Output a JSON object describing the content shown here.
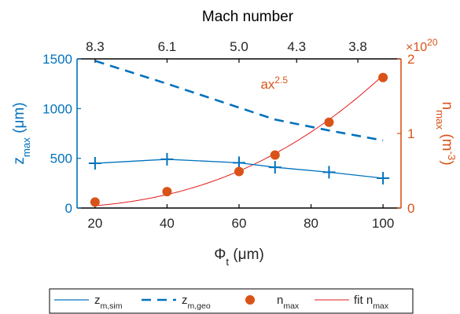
{
  "colors": {
    "left_axis": "#0072bd",
    "right_axis": "#d95319",
    "fit_line": "#e31a1c",
    "frame": "#000000",
    "text": "#262626"
  },
  "chart_data": {
    "type": "line",
    "title": "",
    "xlabel": "Φt (μm)",
    "xlabel_parts": {
      "main": "Φ",
      "sub": "t",
      "rest": " (μm)"
    },
    "xlim": [
      15,
      105
    ],
    "xticks": [
      20,
      40,
      60,
      80,
      100
    ],
    "top_axis": {
      "label": "Mach number",
      "ticks": [
        {
          "x": 20,
          "label": "8.3"
        },
        {
          "x": 40,
          "label": "6.1"
        },
        {
          "x": 60,
          "label": "5.0"
        },
        {
          "x": 76,
          "label": "4.3"
        },
        {
          "x": 93,
          "label": "3.8"
        }
      ]
    },
    "left_axis": {
      "label": "zmax (μm)",
      "label_parts": {
        "main": "z",
        "sub": "max",
        "rest": " (μm)"
      },
      "ylim": [
        0,
        1500
      ],
      "ticks": [
        0,
        500,
        1000,
        1500
      ]
    },
    "right_axis": {
      "label": "nmax (m⁻³)",
      "label_parts": {
        "main": "n",
        "sub": "max",
        "rest": " (m",
        "sup": "-3",
        "close": ")"
      },
      "ylim": [
        0,
        2
      ],
      "ticks": [
        0,
        1,
        2
      ],
      "exponent_label": "×10",
      "exponent_power": "20"
    },
    "grid": false,
    "annotation": {
      "text": "ax",
      "sup": "2.5",
      "x": 66,
      "y_right": 1.6
    },
    "series": [
      {
        "name": "zm,sim",
        "legend_main": "z",
        "legend_sub": "m,sim",
        "axis": "left",
        "style": "solid-line-plus-markers",
        "x": [
          20,
          40,
          60,
          70,
          85,
          100
        ],
        "y": [
          450,
          490,
          455,
          410,
          360,
          300
        ]
      },
      {
        "name": "zm,geo",
        "legend_main": "z",
        "legend_sub": "m,geo",
        "axis": "left",
        "style": "dashed-line",
        "x": [
          20,
          40,
          60,
          70,
          85,
          100
        ],
        "y": [
          1480,
          1250,
          1010,
          890,
          780,
          680
        ]
      },
      {
        "name": "nmax",
        "legend_main": "n",
        "legend_sub": "max",
        "axis": "right",
        "style": "filled-circles",
        "x": [
          20,
          40,
          60,
          70,
          85,
          100
        ],
        "y": [
          0.08,
          0.22,
          0.49,
          0.71,
          1.15,
          1.75
        ]
      },
      {
        "name": "fit nmax",
        "legend_main": "fit n",
        "legend_sub": "max",
        "axis": "right",
        "style": "thin-line",
        "fit_exponent": 2.5,
        "fit_x_range": [
          20,
          100
        ],
        "fit_y_at_100": 1.78
      }
    ],
    "legend": {
      "placement": "bottom",
      "orientation": "horizontal"
    }
  }
}
